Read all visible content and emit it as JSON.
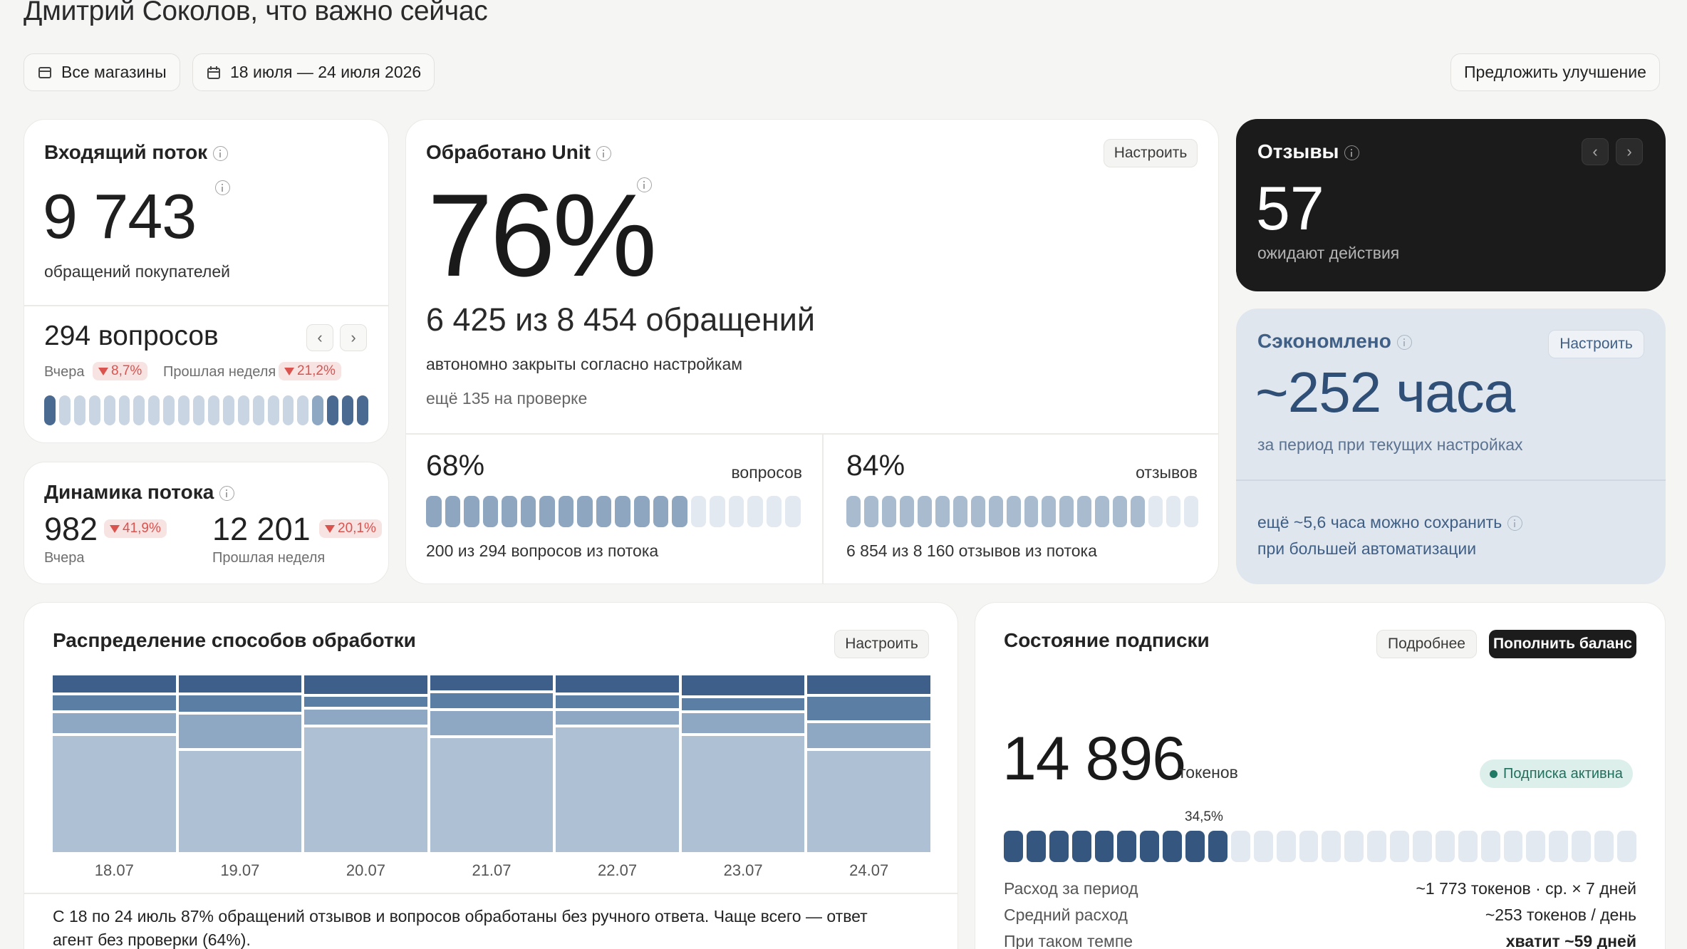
{
  "header": {
    "title": "Дмитрий Соколов, что важно сейчас",
    "stores_filter": "Все магазины",
    "date_range": "18 июля — 24 июля 2026",
    "suggest_button": "Предложить улучшение"
  },
  "incoming": {
    "title": "Входящий поток",
    "value": "9 743",
    "caption": "обращений покупателей",
    "questions": "294 вопросов",
    "yesterday_label": "Вчера",
    "yesterday_delta": "8,7%",
    "week_label": "Прошлая неделя",
    "week_delta": "21,2%",
    "bar_levels": [
      0.9,
      0.4,
      0.4,
      0.4,
      0.4,
      0.4,
      0.4,
      0.4,
      0.4,
      0.4,
      0.4,
      0.4,
      0.4,
      0.4,
      0.4,
      0.4,
      0.4,
      0.4,
      0.6,
      0.9,
      0.9,
      0.9
    ]
  },
  "dynamics": {
    "title": "Динамика потока",
    "yesterday_value": "982",
    "yesterday_delta": "41,9%",
    "yesterday_label": "Вчера",
    "week_value": "12 201",
    "week_delta": "20,1%",
    "week_label": "Прошлая неделя"
  },
  "processed": {
    "title": "Обработано Unit",
    "configure": "Настроить",
    "percent": "76%",
    "count": "6 425 из 8 454 обращений",
    "caption": "автономно закрыты согласно настройкам",
    "review_note": "ещё 135 на проверке",
    "questions": {
      "percent": "68%",
      "label": "вопросов",
      "caption": "200 из 294 вопросов из потока",
      "fill": 0.68
    },
    "reviews": {
      "percent": "84%",
      "label": "отзывов",
      "caption": "6 854 из 8 160 отзывов из потока",
      "fill": 0.84
    }
  },
  "reviews_card": {
    "title": "Отзывы",
    "value": "57",
    "caption": "ожидают действия"
  },
  "saved": {
    "title": "Сэкономлено",
    "configure": "Настроить",
    "value": "~252 часа",
    "caption": "за период при текущих настройках",
    "extra_line1": "ещё ~5,6 часа можно сохранить",
    "extra_line2": "при большей автоматизации"
  },
  "distribution": {
    "title": "Распределение способов обработки",
    "configure": "Настроить",
    "summary_line1": "С 18 по 24 июль 87% обращений отзывов и вопросов обработаны без ручного ответа. Чаще всего — ответ",
    "summary_line2": "агент без проверки (64%).",
    "colors": [
      "#3d5f8a",
      "#5b7ea5",
      "#8ea7c2",
      "#aec0d4"
    ]
  },
  "chart_data": {
    "type": "bar",
    "stacked": true,
    "normalized": true,
    "categories": [
      "18.07",
      "19.07",
      "20.07",
      "21.07",
      "22.07",
      "23.07",
      "24.07"
    ],
    "series": [
      {
        "values": [
          10,
          10,
          11,
          9,
          10,
          12,
          11
        ]
      },
      {
        "values": [
          9,
          10,
          6,
          9,
          8,
          7,
          14
        ]
      },
      {
        "values": [
          12,
          20,
          9,
          14,
          8,
          12,
          15
        ]
      },
      {
        "values": [
          69,
          60,
          74,
          68,
          74,
          69,
          60
        ]
      }
    ]
  },
  "subscription": {
    "title": "Состояние подписки",
    "details_button": "Подробнее",
    "topup_button": "Пополнить баланс",
    "tokens": "14 896",
    "tokens_unit": "токенов",
    "status": "Подписка активна",
    "usage_percent": "34,5%",
    "usage_fill": 0.345,
    "rows": [
      {
        "label": "Расход за период",
        "value": "~1 773 токенов · ср. × 7 дней"
      },
      {
        "label": "Средний расход",
        "value": "~253 токенов / день"
      },
      {
        "label": "При таком темпе",
        "value": "хватит ~59 дней"
      }
    ]
  }
}
